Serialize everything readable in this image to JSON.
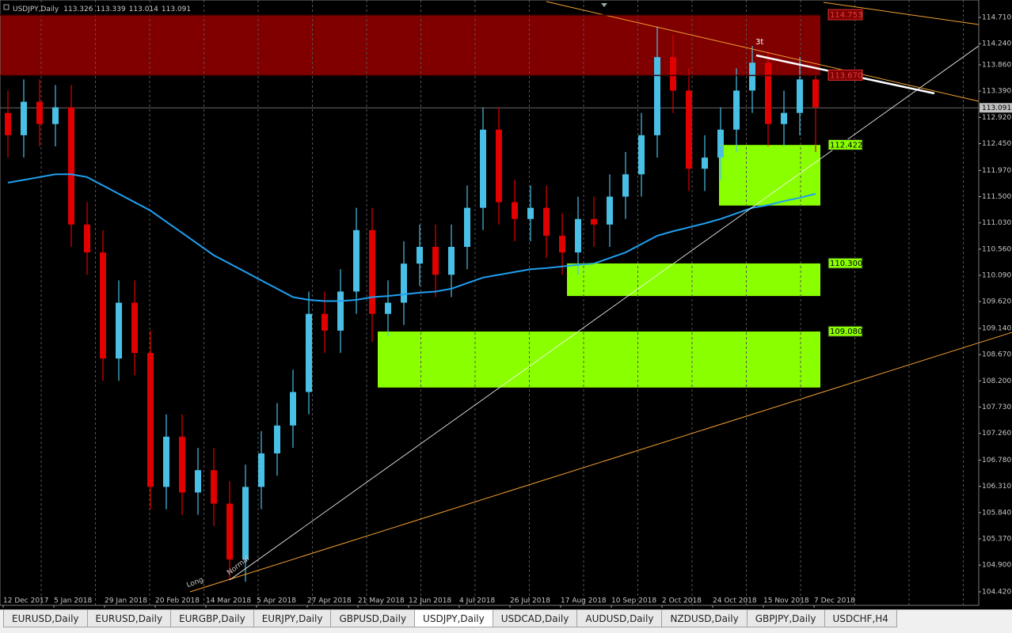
{
  "window": {
    "tabs": [
      "EURUSD,Daily",
      "EURUSD,Daily",
      "EURGBP,Daily",
      "EURJPY,Daily",
      "GBPUSD,Daily",
      "USDJPY,Daily",
      "USDCAD,Daily",
      "AUDUSD,Daily",
      "NZDUSD,Daily",
      "GBPJPY,Daily",
      "USDCHF,H4"
    ],
    "active_tab": 5
  },
  "chart_data": {
    "type": "candlestick",
    "symbol": "USDJPY,Daily",
    "quote": [
      113.326,
      113.339,
      113.014,
      113.091
    ],
    "x_labels": [
      "12 Dec 2017",
      "5 Jan 2018",
      "29 Jan 2018",
      "20 Feb 2018",
      "14 Mar 2018",
      "5 Apr 2018",
      "27 Apr 2018",
      "21 May 2018",
      "12 Jun 2018",
      "4 Jul 2018",
      "26 Jul 2018",
      "17 Aug 2018",
      "10 Sep 2018",
      "2 Oct 2018",
      "24 Oct 2018",
      "15 Nov 2018",
      "7 Dec 2018"
    ],
    "up_color": "#49bfe6",
    "down_color": "#e00000",
    "open": [
      113.0,
      112.6,
      113.2,
      112.8,
      113.1,
      111.0,
      110.5,
      108.6,
      109.6,
      108.7,
      106.3,
      107.2,
      106.2,
      106.6,
      106.0,
      105.0,
      106.3,
      106.9,
      107.4,
      108.0,
      109.4,
      109.1,
      109.8,
      110.9,
      109.4,
      109.6,
      110.3,
      110.6,
      110.1,
      110.6,
      111.3,
      112.7,
      111.4,
      111.1,
      111.3,
      110.8,
      110.5,
      111.1,
      111.0,
      111.5,
      111.9,
      112.6,
      114.0,
      113.4,
      112.0,
      112.2,
      112.7,
      113.4,
      113.9,
      112.8,
      113.0,
      113.6
    ],
    "high": [
      113.4,
      113.6,
      113.6,
      113.5,
      113.5,
      111.4,
      110.9,
      110.0,
      110.0,
      109.1,
      107.6,
      107.6,
      107.0,
      107.0,
      106.4,
      106.7,
      107.3,
      107.8,
      108.4,
      109.8,
      109.8,
      110.2,
      111.3,
      111.3,
      110.0,
      110.7,
      111.0,
      111.0,
      111.0,
      111.7,
      113.1,
      113.1,
      111.8,
      111.7,
      111.7,
      111.2,
      111.5,
      111.5,
      111.9,
      112.3,
      113.0,
      114.55,
      114.4,
      113.8,
      112.6,
      113.1,
      113.8,
      114.2,
      114.1,
      113.4,
      114.0,
      113.7
    ],
    "low": [
      112.2,
      112.2,
      112.4,
      112.4,
      110.6,
      110.1,
      108.2,
      108.2,
      108.3,
      105.9,
      105.9,
      105.8,
      105.8,
      105.6,
      104.65,
      104.6,
      105.9,
      106.5,
      107.0,
      107.6,
      108.7,
      108.7,
      109.4,
      108.9,
      109.0,
      109.2,
      109.9,
      109.7,
      109.7,
      110.2,
      110.9,
      111.0,
      110.7,
      110.7,
      110.4,
      110.1,
      110.1,
      110.6,
      110.6,
      111.1,
      111.5,
      112.2,
      113.0,
      111.6,
      111.6,
      111.8,
      112.3,
      113.0,
      112.4,
      112.4,
      112.6,
      112.3
    ],
    "close": [
      112.6,
      113.2,
      112.8,
      113.1,
      111.0,
      110.5,
      108.6,
      109.6,
      108.7,
      106.3,
      107.2,
      106.2,
      106.6,
      106.0,
      105.0,
      106.3,
      106.9,
      107.4,
      108.0,
      109.4,
      109.1,
      109.8,
      110.9,
      109.4,
      109.6,
      110.3,
      110.6,
      110.1,
      110.6,
      111.3,
      112.7,
      111.4,
      111.1,
      111.3,
      110.8,
      110.5,
      111.1,
      111.0,
      111.5,
      111.9,
      112.6,
      114.0,
      113.4,
      112.0,
      112.2,
      112.7,
      113.4,
      113.9,
      112.8,
      113.0,
      113.6,
      113.1
    ],
    "ma": {
      "color": "#1fa0f0",
      "values": [
        111.75,
        111.8,
        111.85,
        111.9,
        111.9,
        111.85,
        111.7,
        111.55,
        111.4,
        111.25,
        111.05,
        110.85,
        110.65,
        110.45,
        110.3,
        110.15,
        110.0,
        109.85,
        109.7,
        109.65,
        109.63,
        109.63,
        109.65,
        109.7,
        109.72,
        109.75,
        109.78,
        109.8,
        109.85,
        109.95,
        110.05,
        110.1,
        110.15,
        110.2,
        110.22,
        110.25,
        110.28,
        110.3,
        110.4,
        110.5,
        110.65,
        110.8,
        110.88,
        110.95,
        111.02,
        111.1,
        111.2,
        111.3,
        111.35,
        111.42,
        111.48,
        111.55
      ]
    },
    "zones": [
      {
        "color": "#800000",
        "top": {
          "value": 114.753,
          "label": "114.753"
        },
        "bottom": {
          "value": 113.67,
          "label": "113.670"
        }
      },
      {
        "color": "#8aff00",
        "top": {
          "value": 112.422,
          "label": "112.422"
        },
        "bottom": 111.34
      },
      {
        "color": "#8aff00",
        "top": {
          "value": 110.3,
          "label": "110.300"
        },
        "bottom": 109.72
      },
      {
        "color": "#8aff00",
        "top": {
          "value": 109.08,
          "label": "109.080"
        },
        "bottom": 108.08
      }
    ],
    "current_price": 113.091,
    "annotations": [
      "Long",
      "Normal",
      "3t"
    ],
    "ylim": [
      104.42,
      114.98
    ],
    "yticks": [
      {
        "value": 114.71,
        "label": "114.710"
      },
      {
        "value": 114.24,
        "label": "114.240"
      },
      {
        "value": 113.86,
        "label": "113.860"
      },
      {
        "value": 113.39,
        "label": "113.390"
      },
      {
        "value": 112.92,
        "label": "112.920"
      },
      {
        "value": 112.45,
        "label": "112.450"
      },
      {
        "value": 111.97,
        "label": "111.970"
      },
      {
        "value": 111.5,
        "label": "111.500"
      },
      {
        "value": 111.03,
        "label": "111.030"
      },
      {
        "value": 110.56,
        "label": "110.560"
      },
      {
        "value": 110.09,
        "label": "110.090"
      },
      {
        "value": 109.62,
        "label": "109.620"
      },
      {
        "value": 109.14,
        "label": "109.140"
      },
      {
        "value": 108.67,
        "label": "108.670"
      },
      {
        "value": 108.2,
        "label": "108.200"
      },
      {
        "value": 107.73,
        "label": "107.730"
      },
      {
        "value": 107.26,
        "label": "107.260"
      },
      {
        "value": 106.78,
        "label": "106.780"
      },
      {
        "value": 106.31,
        "label": "106.310"
      },
      {
        "value": 105.84,
        "label": "105.840"
      },
      {
        "value": 105.37,
        "label": "105.370"
      },
      {
        "value": 104.9,
        "label": "104.900"
      },
      {
        "value": 104.42,
        "label": "104.420"
      }
    ]
  }
}
